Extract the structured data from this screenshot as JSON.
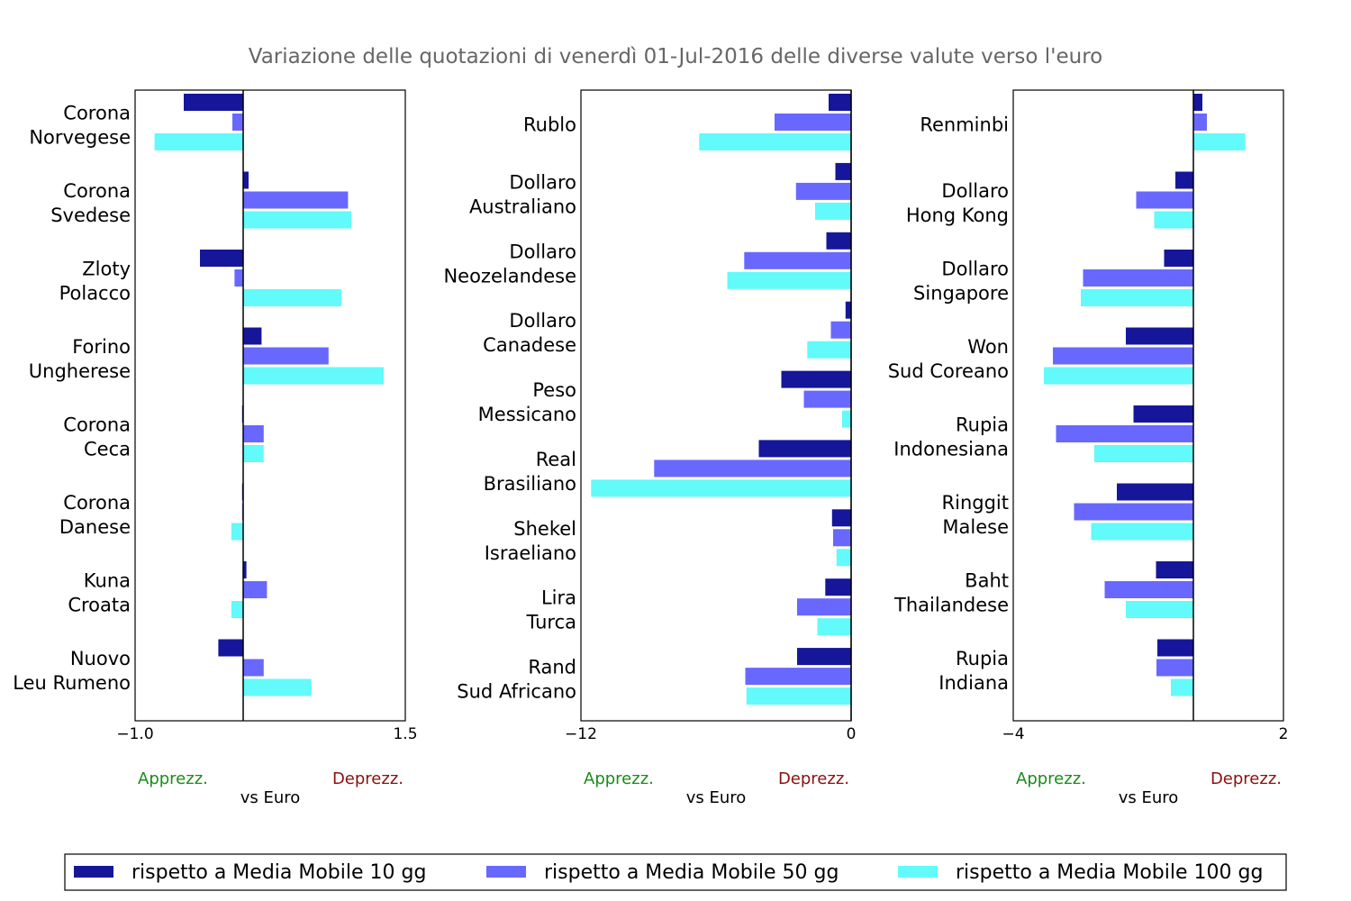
{
  "title": "Variazione delle quotazioni di venerdì 01-Jul-2016 delle diverse valute verso l'euro",
  "colors": {
    "ma10": "#16169a",
    "ma50": "#6868ff",
    "ma100": "#62fafa",
    "apprezz": "#1a8c1a",
    "deprezz": "#8b1010",
    "title": "#666666"
  },
  "legend": [
    {
      "key": "ma10",
      "label": "rispetto a Media Mobile 10 gg"
    },
    {
      "key": "ma50",
      "label": "rispetto a Media Mobile 50 gg"
    },
    {
      "key": "ma100",
      "label": "rispetto a Media Mobile 100 gg"
    }
  ],
  "chart_data": [
    {
      "type": "bar",
      "orientation": "horizontal",
      "xlabel": "vs Euro",
      "apprezz_label": "Apprezz.",
      "deprezz_label": "Deprezz.",
      "xlim": [
        -1.0,
        1.5
      ],
      "tick_labels": [
        "−1.0",
        "1.5"
      ],
      "categories": [
        {
          "line1": "Corona",
          "line2": "Norvegese"
        },
        {
          "line1": "Corona",
          "line2": "Svedese"
        },
        {
          "line1": "Zloty",
          "line2": "Polacco"
        },
        {
          "line1": "Forino",
          "line2": "Ungherese"
        },
        {
          "line1": "Corona",
          "line2": "Ceca"
        },
        {
          "line1": "Corona",
          "line2": "Danese"
        },
        {
          "line1": "Kuna",
          "line2": "Croata"
        },
        {
          "line1": "Nuovo",
          "line2": "Leu Rumeno"
        }
      ],
      "series": [
        {
          "name": "rispetto a Media Mobile 10 gg",
          "key": "ma10",
          "values": [
            -0.55,
            0.05,
            -0.4,
            0.17,
            -0.01,
            -0.01,
            0.03,
            -0.23
          ]
        },
        {
          "name": "rispetto a Media Mobile 50 gg",
          "key": "ma50",
          "values": [
            -0.1,
            0.97,
            -0.08,
            0.79,
            0.19,
            -0.01,
            0.22,
            0.19
          ]
        },
        {
          "name": "rispetto a Media Mobile 100 gg",
          "key": "ma100",
          "values": [
            -0.82,
            1.0,
            0.91,
            1.3,
            0.19,
            -0.11,
            -0.11,
            0.63
          ]
        }
      ]
    },
    {
      "type": "bar",
      "orientation": "horizontal",
      "xlabel": "vs Euro",
      "apprezz_label": "Apprezz.",
      "deprezz_label": "Deprezz.",
      "xlim": [
        -12,
        0
      ],
      "tick_labels": [
        "−12",
        "0"
      ],
      "categories": [
        {
          "line1": "",
          "line2": "Rublo"
        },
        {
          "line1": "Dollaro",
          "line2": "Australiano"
        },
        {
          "line1": "Dollaro",
          "line2": "Neozelandese"
        },
        {
          "line1": "Dollaro",
          "line2": "Canadese"
        },
        {
          "line1": "Peso",
          "line2": "Messicano"
        },
        {
          "line1": "Real",
          "line2": "Brasiliano"
        },
        {
          "line1": "Shekel",
          "line2": "Israeliano"
        },
        {
          "line1": "Lira",
          "line2": "Turca"
        },
        {
          "line1": "Rand",
          "line2": "Sud Africano"
        }
      ],
      "series": [
        {
          "name": "rispetto a Media Mobile 10 gg",
          "key": "ma10",
          "values": [
            -1.0,
            -0.7,
            -1.1,
            -0.25,
            -3.1,
            -4.1,
            -0.85,
            -1.15,
            -2.4
          ]
        },
        {
          "name": "rispetto a Media Mobile 50 gg",
          "key": "ma50",
          "values": [
            -3.4,
            -2.45,
            -4.75,
            -0.9,
            -2.1,
            -8.75,
            -0.8,
            -2.4,
            -4.7
          ]
        },
        {
          "name": "rispetto a Media Mobile 100 gg",
          "key": "ma100",
          "values": [
            -6.75,
            -1.6,
            -5.5,
            -1.95,
            -0.4,
            -11.55,
            -0.65,
            -1.5,
            -4.65
          ]
        }
      ]
    },
    {
      "type": "bar",
      "orientation": "horizontal",
      "xlabel": "vs Euro",
      "apprezz_label": "Apprezz.",
      "deprezz_label": "Deprezz.",
      "xlim": [
        -4,
        2
      ],
      "tick_labels": [
        "−4",
        "2"
      ],
      "categories": [
        {
          "line1": "",
          "line2": "Renminbi"
        },
        {
          "line1": "Dollaro",
          "line2": "Hong Kong"
        },
        {
          "line1": "Dollaro",
          "line2": "Singapore"
        },
        {
          "line1": "Won",
          "line2": "Sud Coreano"
        },
        {
          "line1": "Rupia",
          "line2": "Indonesiana"
        },
        {
          "line1": "Ringgit",
          "line2": "Malese"
        },
        {
          "line1": "Baht",
          "line2": "Thailandese"
        },
        {
          "line1": "Rupia",
          "line2": "Indiana"
        }
      ],
      "series": [
        {
          "name": "rispetto a Media Mobile 10 gg",
          "key": "ma10",
          "values": [
            0.2,
            -0.4,
            -0.65,
            -1.5,
            -1.33,
            -1.7,
            -0.83,
            -0.8
          ]
        },
        {
          "name": "rispetto a Media Mobile 50 gg",
          "key": "ma50",
          "values": [
            0.3,
            -1.27,
            -2.45,
            -3.12,
            -3.05,
            -2.65,
            -1.97,
            -0.82
          ]
        },
        {
          "name": "rispetto a Media Mobile 100 gg",
          "key": "ma100",
          "values": [
            1.15,
            -0.87,
            -2.5,
            -3.32,
            -2.2,
            -2.27,
            -1.5,
            -0.5
          ]
        }
      ]
    }
  ]
}
